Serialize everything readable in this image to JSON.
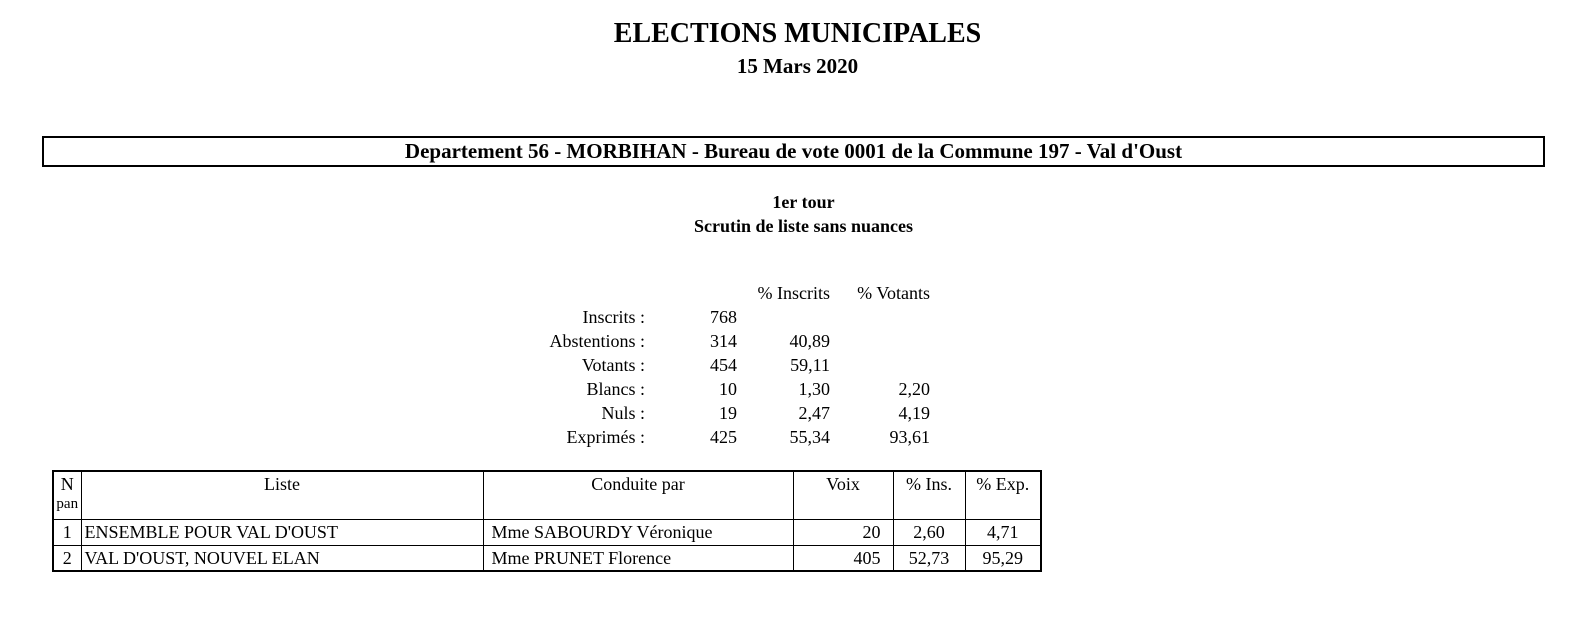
{
  "page": {
    "title": "ELECTIONS MUNICIPALES",
    "date": "15 Mars 2020"
  },
  "department_banner": "Departement 56 - MORBIHAN - Bureau de vote 0001 de la Commune 197 - Val d'Oust",
  "round": {
    "line1": "1er tour",
    "line2": "Scrutin de liste sans nuances"
  },
  "stats": {
    "headers": {
      "pct_inscrits": "% Inscrits",
      "pct_votants": "% Votants"
    },
    "rows": [
      {
        "label": "Inscrits :",
        "count": "768",
        "pct_inscrits": "",
        "pct_votants": ""
      },
      {
        "label": "Abstentions :",
        "count": "314",
        "pct_inscrits": "40,89",
        "pct_votants": ""
      },
      {
        "label": "Votants :",
        "count": "454",
        "pct_inscrits": "59,11",
        "pct_votants": ""
      },
      {
        "label": "Blancs :",
        "count": "10",
        "pct_inscrits": "1,30",
        "pct_votants": "2,20"
      },
      {
        "label": "Nuls :",
        "count": "19",
        "pct_inscrits": "2,47",
        "pct_votants": "4,19"
      },
      {
        "label": "Exprimés :",
        "count": "425",
        "pct_inscrits": "55,34",
        "pct_votants": "93,61"
      }
    ]
  },
  "results_table": {
    "headers": {
      "num_line1": "N",
      "num_line2": "pan",
      "liste": "Liste",
      "conduite_par": "Conduite par",
      "voix": "Voix",
      "pct_ins": "% Ins.",
      "pct_exp": "% Exp."
    },
    "rows": [
      {
        "num": "1",
        "liste": "ENSEMBLE POUR VAL D'OUST",
        "conduite_par": "Mme SABOURDY Véronique",
        "voix": "20",
        "pct_ins": "2,60",
        "pct_exp": "4,71"
      },
      {
        "num": "2",
        "liste": "VAL D'OUST, NOUVEL ELAN",
        "conduite_par": "Mme PRUNET Florence",
        "voix": "405",
        "pct_ins": "52,73",
        "pct_exp": "95,29"
      }
    ]
  },
  "colors": {
    "text": "#000000",
    "background": "#ffffff",
    "border": "#000000"
  }
}
